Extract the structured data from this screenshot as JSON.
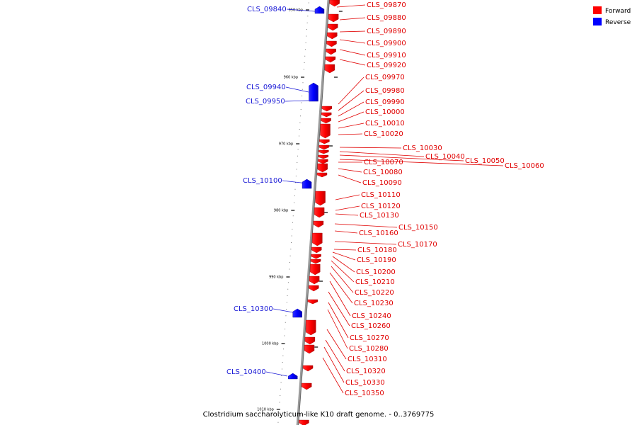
{
  "caption": "Clostridium saccharolyticum-like K10 draft genome. - 0..3769775",
  "legend": [
    {
      "label": "Forward",
      "color": "#ff0000"
    },
    {
      "label": "Reverse",
      "color": "#0000ff"
    }
  ],
  "ticks": [
    "950 kbp",
    "960 kbp",
    "970 kbp",
    "980 kbp",
    "990 kbp",
    "1000 kbp",
    "1010 kbp"
  ],
  "genes": [
    {
      "name": "CLS_09840",
      "strand": "reverse"
    },
    {
      "name": "CLS_09870",
      "strand": "forward"
    },
    {
      "name": "CLS_09880",
      "strand": "forward"
    },
    {
      "name": "CLS_09890",
      "strand": "forward"
    },
    {
      "name": "CLS_09900",
      "strand": "forward"
    },
    {
      "name": "CLS_09910",
      "strand": "forward"
    },
    {
      "name": "CLS_09920",
      "strand": "forward"
    },
    {
      "name": "CLS_09940",
      "strand": "reverse"
    },
    {
      "name": "CLS_09950",
      "strand": "reverse"
    },
    {
      "name": "CLS_09970",
      "strand": "forward"
    },
    {
      "name": "CLS_09980",
      "strand": "forward"
    },
    {
      "name": "CLS_09990",
      "strand": "forward"
    },
    {
      "name": "CLS_10000",
      "strand": "forward"
    },
    {
      "name": "CLS_10010",
      "strand": "forward"
    },
    {
      "name": "CLS_10020",
      "strand": "forward"
    },
    {
      "name": "CLS_10030",
      "strand": "forward"
    },
    {
      "name": "CLS_10040",
      "strand": "forward"
    },
    {
      "name": "CLS_10050",
      "strand": "forward"
    },
    {
      "name": "CLS_10060",
      "strand": "forward"
    },
    {
      "name": "CLS_10070",
      "strand": "forward"
    },
    {
      "name": "CLS_10080",
      "strand": "forward"
    },
    {
      "name": "CLS_10090",
      "strand": "forward"
    },
    {
      "name": "CLS_10100",
      "strand": "reverse"
    },
    {
      "name": "CLS_10110",
      "strand": "forward"
    },
    {
      "name": "CLS_10120",
      "strand": "forward"
    },
    {
      "name": "CLS_10130",
      "strand": "forward"
    },
    {
      "name": "CLS_10150",
      "strand": "forward"
    },
    {
      "name": "CLS_10160",
      "strand": "forward"
    },
    {
      "name": "CLS_10170",
      "strand": "forward"
    },
    {
      "name": "CLS_10180",
      "strand": "forward"
    },
    {
      "name": "CLS_10190",
      "strand": "forward"
    },
    {
      "name": "CLS_10200",
      "strand": "forward"
    },
    {
      "name": "CLS_10210",
      "strand": "forward"
    },
    {
      "name": "CLS_10220",
      "strand": "forward"
    },
    {
      "name": "CLS_10230",
      "strand": "forward"
    },
    {
      "name": "CLS_10240",
      "strand": "forward"
    },
    {
      "name": "CLS_10260",
      "strand": "forward"
    },
    {
      "name": "CLS_10270",
      "strand": "forward"
    },
    {
      "name": "CLS_10280",
      "strand": "forward"
    },
    {
      "name": "CLS_10300",
      "strand": "reverse"
    },
    {
      "name": "CLS_10310",
      "strand": "forward"
    },
    {
      "name": "CLS_10320",
      "strand": "forward"
    },
    {
      "name": "CLS_10330",
      "strand": "forward"
    },
    {
      "name": "CLS_10350",
      "strand": "forward"
    },
    {
      "name": "CLS_10400",
      "strand": "reverse"
    }
  ]
}
